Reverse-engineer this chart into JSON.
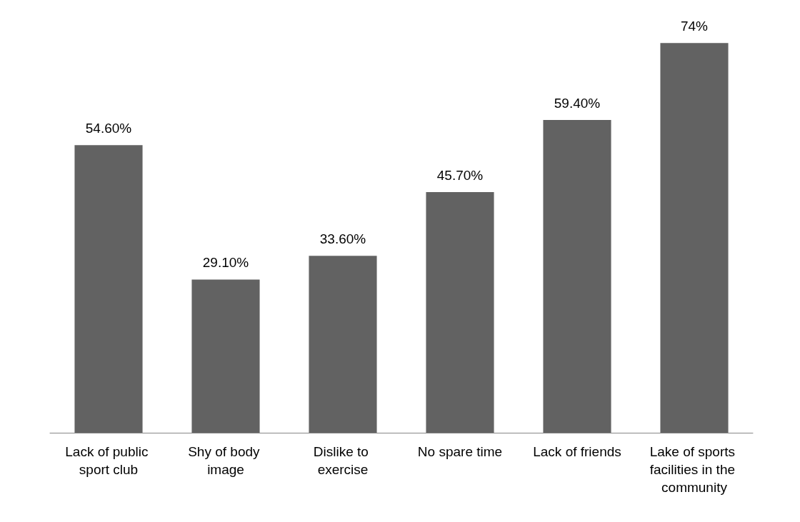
{
  "chart_data": {
    "type": "bar",
    "categories": [
      "Lack of public sport club",
      "Shy of body image",
      "Dislike to exercise",
      "No spare time",
      "Lack of friends",
      "Lake of sports facilities in the community"
    ],
    "values": [
      54.6,
      29.1,
      33.6,
      45.7,
      59.4,
      74
    ],
    "value_labels": [
      "54.60%",
      "29.10%",
      "33.60%",
      "45.70%",
      "59.40%",
      "74%"
    ],
    "color": "#626262"
  }
}
